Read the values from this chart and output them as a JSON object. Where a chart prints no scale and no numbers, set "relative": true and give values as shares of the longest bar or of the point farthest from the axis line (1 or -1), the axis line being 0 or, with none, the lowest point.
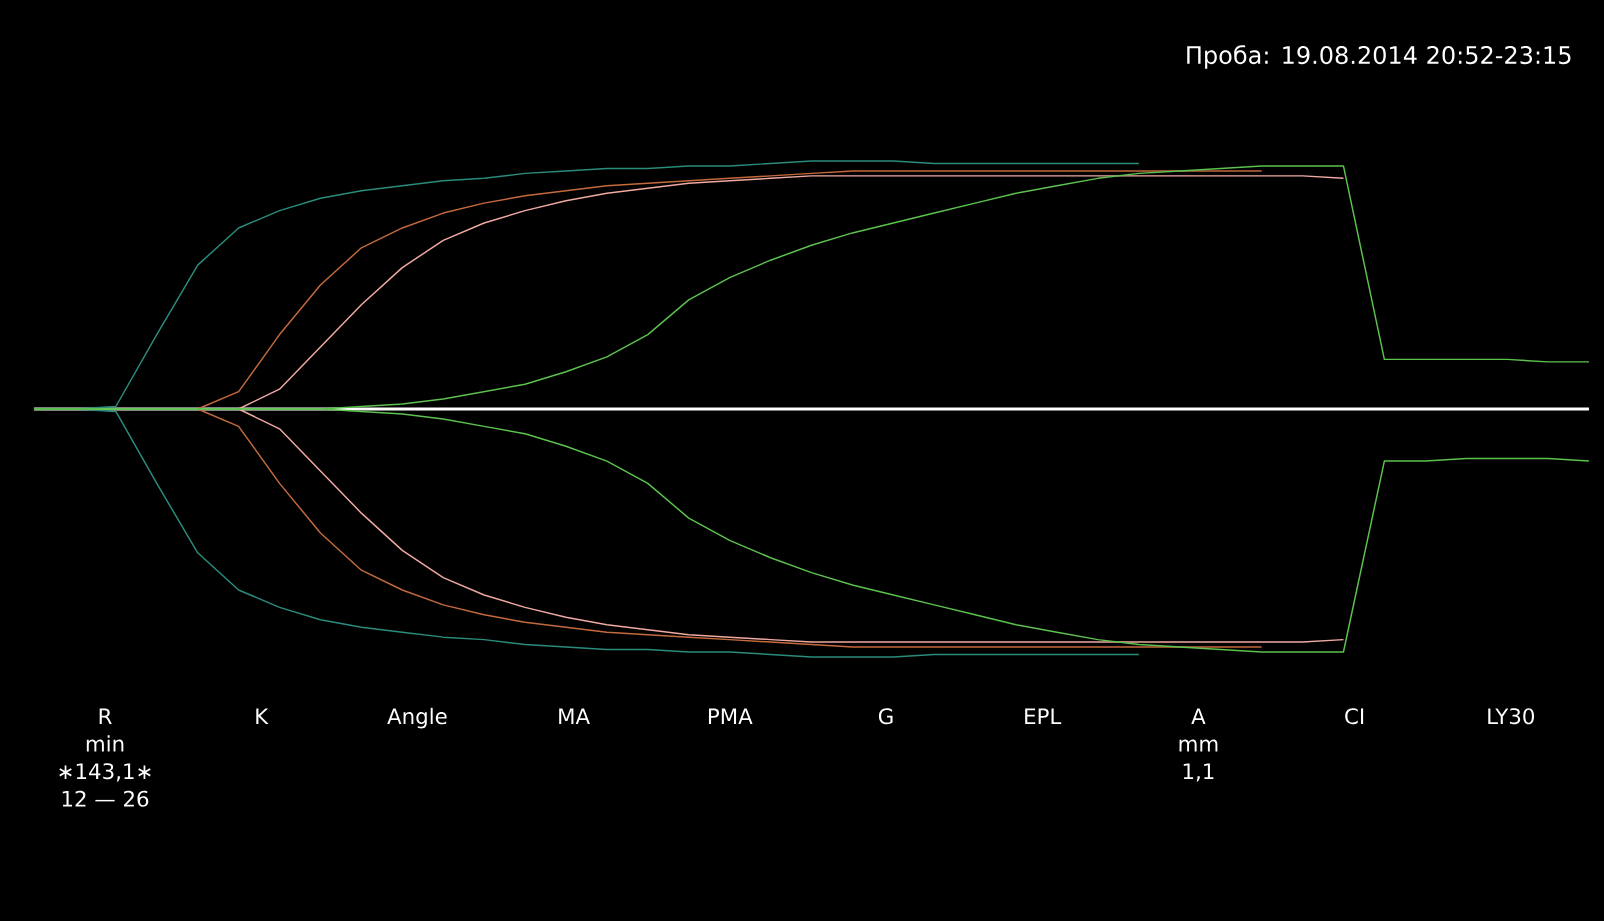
{
  "chart_data": {
    "type": "line",
    "relative": true,
    "title": "Проба: 19.08.2014 20:52-23:15",
    "categories": [
      null,
      null,
      null,
      null,
      null,
      null,
      null,
      null,
      null,
      null,
      null,
      null,
      null,
      null,
      null,
      null,
      null,
      null,
      null,
      null,
      null,
      null,
      null,
      null,
      null,
      null,
      null,
      null,
      null,
      null,
      null,
      null,
      null,
      null,
      null,
      null,
      null,
      null,
      null
    ],
    "series": [
      {
        "color": "#2a8c7c",
        "values": [
          0,
          0,
          0.01,
          0.3,
          0.58,
          0.73,
          0.8,
          0.85,
          0.88,
          0.9,
          0.92,
          0.93,
          0.95,
          0.96,
          0.97,
          0.97,
          0.98,
          0.98,
          0.99,
          1,
          1,
          1,
          0.99,
          0.99,
          0.99,
          0.99,
          0.99,
          0.99,
          null,
          null,
          null,
          null,
          null,
          null,
          null,
          null,
          null,
          null,
          null
        ]
      },
      {
        "color": "#2a8c7c",
        "values": [
          0,
          0,
          -0.01,
          -0.3,
          -0.58,
          -0.73,
          -0.8,
          -0.85,
          -0.88,
          -0.9,
          -0.92,
          -0.93,
          -0.95,
          -0.96,
          -0.97,
          -0.97,
          -0.98,
          -0.98,
          -0.99,
          -1,
          -1,
          -1,
          -0.99,
          -0.99,
          -0.99,
          -0.99,
          -0.99,
          -0.99,
          null,
          null,
          null,
          null,
          null,
          null,
          null,
          null,
          null,
          null,
          null
        ]
      },
      {
        "color": "#c46a3c",
        "values": [
          null,
          null,
          null,
          null,
          0,
          0.07,
          0.3,
          0.5,
          0.65,
          0.73,
          0.79,
          0.83,
          0.86,
          0.88,
          0.9,
          0.91,
          0.92,
          0.93,
          0.94,
          0.95,
          0.96,
          0.96,
          0.96,
          0.96,
          0.96,
          0.96,
          0.96,
          0.96,
          0.96,
          0.96,
          0.96,
          null,
          null,
          null,
          null,
          null,
          null,
          null,
          null
        ]
      },
      {
        "color": "#c46a3c",
        "values": [
          null,
          null,
          null,
          null,
          0,
          -0.07,
          -0.3,
          -0.5,
          -0.65,
          -0.73,
          -0.79,
          -0.83,
          -0.86,
          -0.88,
          -0.9,
          -0.91,
          -0.92,
          -0.93,
          -0.94,
          -0.95,
          -0.96,
          -0.96,
          -0.96,
          -0.96,
          -0.96,
          -0.96,
          -0.96,
          -0.96,
          -0.96,
          -0.96,
          -0.96,
          null,
          null,
          null,
          null,
          null,
          null,
          null,
          null
        ]
      },
      {
        "color": "#f0aaa2",
        "values": [
          null,
          null,
          null,
          null,
          null,
          0,
          0.08,
          0.25,
          0.42,
          0.57,
          0.68,
          0.75,
          0.8,
          0.84,
          0.87,
          0.89,
          0.91,
          0.92,
          0.93,
          0.94,
          0.94,
          0.94,
          0.94,
          0.94,
          0.94,
          0.94,
          0.94,
          0.94,
          0.94,
          0.94,
          0.94,
          0.94,
          0.93,
          null,
          null,
          null,
          null,
          null,
          null
        ]
      },
      {
        "color": "#f0aaa2",
        "values": [
          null,
          null,
          null,
          null,
          null,
          0,
          -0.08,
          -0.25,
          -0.42,
          -0.57,
          -0.68,
          -0.75,
          -0.8,
          -0.84,
          -0.87,
          -0.89,
          -0.91,
          -0.92,
          -0.93,
          -0.94,
          -0.94,
          -0.94,
          -0.94,
          -0.94,
          -0.94,
          -0.94,
          -0.94,
          -0.94,
          -0.94,
          -0.94,
          -0.94,
          -0.94,
          -0.93,
          null,
          null,
          null,
          null,
          null,
          null
        ]
      },
      {
        "color": "#5cc24e",
        "values": [
          0,
          0,
          0,
          0,
          0,
          0,
          0,
          0,
          0.01,
          0.02,
          0.04,
          0.07,
          0.1,
          0.15,
          0.21,
          0.3,
          0.44,
          0.53,
          0.6,
          0.66,
          0.71,
          0.75,
          0.79,
          0.83,
          0.87,
          0.9,
          0.93,
          0.95,
          0.96,
          0.97,
          0.98,
          0.98,
          0.98,
          0.2,
          0.2,
          0.2,
          0.2,
          0.19,
          0.19
        ]
      },
      {
        "color": "#5cc24e",
        "values": [
          0,
          0,
          0,
          0,
          0,
          0,
          0,
          0,
          -0.01,
          -0.02,
          -0.04,
          -0.07,
          -0.1,
          -0.15,
          -0.21,
          -0.3,
          -0.44,
          -0.53,
          -0.6,
          -0.66,
          -0.71,
          -0.75,
          -0.79,
          -0.83,
          -0.87,
          -0.9,
          -0.93,
          -0.95,
          -0.96,
          -0.97,
          -0.98,
          -0.98,
          -0.98,
          -0.21,
          -0.21,
          -0.2,
          -0.2,
          -0.2,
          -0.21
        ]
      }
    ],
    "annotations": [
      "R",
      "min",
      "∗143,1∗",
      "12 — 26",
      "K",
      "Angle",
      "MA",
      "PMA",
      "G",
      "EPL",
      "A",
      "mm",
      "1,1",
      "CI",
      "LY30"
    ]
  }
}
